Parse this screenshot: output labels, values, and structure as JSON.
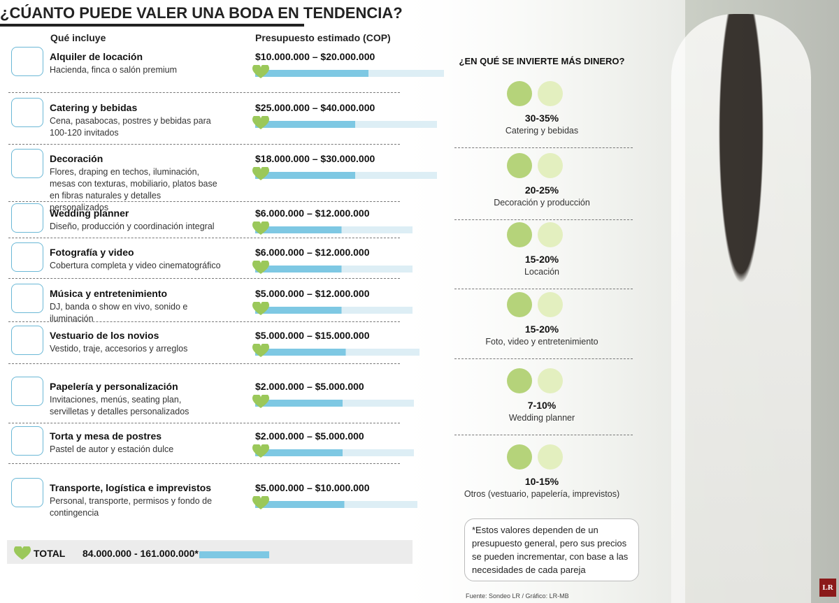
{
  "header": {
    "title": "¿CÚANTO PUEDE VALER UNA BODA EN TENDENCIA?",
    "col_left": "Qué incluye",
    "col_right": "Presupuesto estimado (COP)"
  },
  "items": [
    {
      "name": "Alquiler de locación",
      "desc": "Hacienda, finca o salón premium",
      "range": "$10.000.000 – $20.000.000"
    },
    {
      "name": "Catering y bebidas",
      "desc": "Cena, pasabocas, postres y bebidas para 100-120 invitados",
      "range": "$25.000.000 – $40.000.000"
    },
    {
      "name": "Decoración",
      "desc": "Flores, draping en techos, iluminación, mesas con texturas, mobiliario, platos base en fibras naturales y detalles personalizados",
      "range": "$18.000.000 – $30.000.000"
    },
    {
      "name": "Wedding planner",
      "desc": "Diseño, producción y coordinación integral",
      "range": "$6.000.000 – $12.000.000"
    },
    {
      "name": "Fotografía y video",
      "desc": "Cobertura completa y video cinematográfico",
      "range": "$6.000.000 – $12.000.000"
    },
    {
      "name": "Música y entretenimiento",
      "desc": "DJ, banda o show en vivo, sonido e iluminación",
      "range": "$5.000.000 – $12.000.000"
    },
    {
      "name": "Vestuario de los novios",
      "desc": "Vestido, traje, accesorios y arreglos",
      "range": "$5.000.000 – $15.000.000"
    },
    {
      "name": "Papelería y personalización",
      "desc": "Invitaciones, menús, seating plan, servilletas y detalles personalizados",
      "range": "$2.000.000 – $5.000.000"
    },
    {
      "name": "Torta y mesa de postres",
      "desc": "Pastel de autor y estación dulce",
      "range": "$2.000.000 – $5.000.000"
    },
    {
      "name": "Transporte, logística e imprevistos",
      "desc": "Personal, transporte, permisos y fondo de contingencia",
      "range": "$5.000.000 – $10.000.000"
    }
  ],
  "total": {
    "label": "TOTAL",
    "value": "84.000.000 - 161.000.000*"
  },
  "shares": {
    "title": "¿EN QUÉ SE INVIERTE MÁS DINERO?",
    "items": [
      {
        "range": "30-35%",
        "label": "Catering y bebidas"
      },
      {
        "range": "20-25%",
        "label": "Decoración y producción"
      },
      {
        "range": "15-20%",
        "label": "Locación"
      },
      {
        "range": "15-20%",
        "label": "Foto, video y entretenimiento"
      },
      {
        "range": "7-10%",
        "label": "Wedding planner"
      },
      {
        "range": "10-15%",
        "label": "Otros (vestuario, papelería, imprevistos)"
      }
    ]
  },
  "note": "*Estos valores dependen de un presupuesto general, pero sus precios se pueden incrementar, con base a las necesidades de cada pareja",
  "source": "Fuente: Sondeo LR / Gráfico: LR-MB",
  "logo": "LR"
}
